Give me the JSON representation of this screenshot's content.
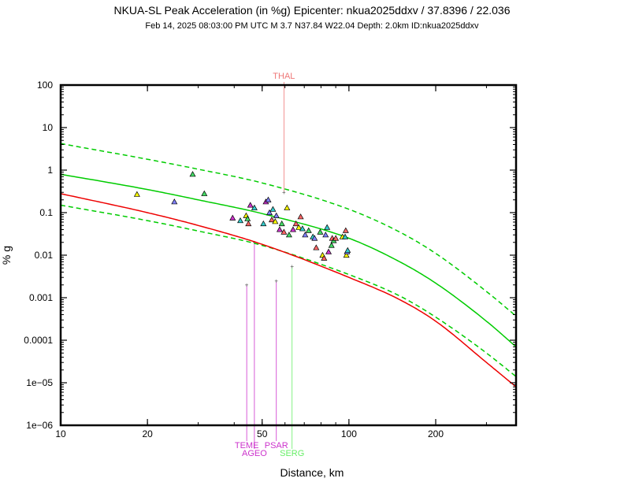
{
  "chart_data": {
    "type": "scatter",
    "title": "NKUA-SL Peak Acceleration (in %g) Epicenter: nkua2025ddxv / 37.8396 / 22.036",
    "subtitle": "Feb 14, 2025 08:03:00 PM UTC   M 3.7   N37.84 W22.04   Depth: 2.0km   ID:nkua2025ddxv",
    "xlabel": "Distance, km",
    "ylabel": "% g",
    "x_scale": "log",
    "y_scale": "log",
    "xlim": [
      10,
      380
    ],
    "ylim": [
      1e-06,
      100
    ],
    "x_ticks": [
      {
        "value": 10,
        "label": "10"
      },
      {
        "value": 20,
        "label": "20"
      },
      {
        "value": 50,
        "label": "50"
      },
      {
        "value": 100,
        "label": "100"
      },
      {
        "value": 200,
        "label": "200"
      }
    ],
    "y_ticks": [
      {
        "value": 1e-06,
        "label": "1e−06"
      },
      {
        "value": 1e-05,
        "label": "1e−05"
      },
      {
        "value": 0.0001,
        "label": "0.0001"
      },
      {
        "value": 0.001,
        "label": "0.001"
      },
      {
        "value": 0.01,
        "label": "0.01"
      },
      {
        "value": 0.1,
        "label": "0.1"
      },
      {
        "value": 1,
        "label": "1"
      },
      {
        "value": 10,
        "label": "10"
      },
      {
        "value": 100,
        "label": "100"
      }
    ],
    "grid": false,
    "curves": [
      {
        "id": "median-green",
        "color": "#00cc00",
        "dashed": false,
        "x": [
          10,
          20,
          30,
          50,
          100,
          150,
          200,
          300,
          380
        ],
        "y": [
          0.8,
          0.35,
          0.2,
          0.095,
          0.025,
          0.007,
          0.0022,
          0.00028,
          7e-05
        ]
      },
      {
        "id": "upper-green",
        "color": "#00cc00",
        "dashed": true,
        "x": [
          10,
          20,
          30,
          50,
          100,
          150,
          200,
          300,
          380
        ],
        "y": [
          4.2,
          1.8,
          1.05,
          0.5,
          0.12,
          0.035,
          0.011,
          0.0014,
          0.00037
        ]
      },
      {
        "id": "lower-green",
        "color": "#00cc00",
        "dashed": true,
        "x": [
          10,
          20,
          30,
          50,
          100,
          150,
          200,
          300,
          380
        ],
        "y": [
          0.15,
          0.065,
          0.037,
          0.017,
          0.0035,
          0.0011,
          0.00035,
          5e-05,
          1.4e-05
        ]
      },
      {
        "id": "red",
        "color": "#ee0000",
        "dashed": false,
        "x": [
          10,
          20,
          30,
          50,
          100,
          150,
          200,
          300,
          380
        ],
        "y": [
          0.28,
          0.1,
          0.05,
          0.018,
          0.003,
          0.0009,
          0.00028,
          3e-05,
          8e-06
        ]
      }
    ],
    "points": [
      {
        "x": 18.4,
        "y": 0.27,
        "color": "#ffff00"
      },
      {
        "x": 24.8,
        "y": 0.18,
        "color": "#8080ff"
      },
      {
        "x": 28.7,
        "y": 0.8,
        "color": "#44dd66"
      },
      {
        "x": 31.5,
        "y": 0.28,
        "color": "#44dd66"
      },
      {
        "x": 39.5,
        "y": 0.075,
        "color": "#cc33cc"
      },
      {
        "x": 42.0,
        "y": 0.065,
        "color": "#33cccc"
      },
      {
        "x": 44.0,
        "y": 0.085,
        "color": "#ffff00"
      },
      {
        "x": 44.5,
        "y": 0.072,
        "color": "#44dd66"
      },
      {
        "x": 44.8,
        "y": 0.055,
        "color": "#ff6666"
      },
      {
        "x": 45.5,
        "y": 0.15,
        "color": "#cc33cc"
      },
      {
        "x": 47.0,
        "y": 0.13,
        "color": "#33cccc"
      },
      {
        "x": 50.5,
        "y": 0.055,
        "color": "#33cccc"
      },
      {
        "x": 51.5,
        "y": 0.18,
        "color": "#cc33cc"
      },
      {
        "x": 52.5,
        "y": 0.2,
        "color": "#8080ff"
      },
      {
        "x": 53.0,
        "y": 0.1,
        "color": "#8080ff"
      },
      {
        "x": 54.0,
        "y": 0.068,
        "color": "#ff6666"
      },
      {
        "x": 54.5,
        "y": 0.12,
        "color": "#33cccc"
      },
      {
        "x": 55.5,
        "y": 0.062,
        "color": "#ffff00"
      },
      {
        "x": 56.0,
        "y": 0.085,
        "color": "#8080ff"
      },
      {
        "x": 57.5,
        "y": 0.04,
        "color": "#cc33cc"
      },
      {
        "x": 58.5,
        "y": 0.055,
        "color": "#44dd66"
      },
      {
        "x": 59.5,
        "y": 0.035,
        "color": "#ff6666"
      },
      {
        "x": 61.0,
        "y": 0.13,
        "color": "#ffff00"
      },
      {
        "x": 62.0,
        "y": 0.03,
        "color": "#44dd66"
      },
      {
        "x": 64.0,
        "y": 0.04,
        "color": "#cc33cc"
      },
      {
        "x": 65.5,
        "y": 0.055,
        "color": "#ff6666"
      },
      {
        "x": 67.0,
        "y": 0.045,
        "color": "#ffff00"
      },
      {
        "x": 68.0,
        "y": 0.08,
        "color": "#ff6666"
      },
      {
        "x": 69.0,
        "y": 0.042,
        "color": "#33cccc"
      },
      {
        "x": 70.5,
        "y": 0.03,
        "color": "#8080ff"
      },
      {
        "x": 72.5,
        "y": 0.038,
        "color": "#44dd66"
      },
      {
        "x": 75.0,
        "y": 0.027,
        "color": "#33cccc"
      },
      {
        "x": 76.0,
        "y": 0.025,
        "color": "#8080ff"
      },
      {
        "x": 77.0,
        "y": 0.015,
        "color": "#ff6666"
      },
      {
        "x": 79.5,
        "y": 0.035,
        "color": "#44dd66"
      },
      {
        "x": 81.0,
        "y": 0.01,
        "color": "#ffff00"
      },
      {
        "x": 82.0,
        "y": 0.0085,
        "color": "#ff6666"
      },
      {
        "x": 83.0,
        "y": 0.03,
        "color": "#8080ff"
      },
      {
        "x": 84.0,
        "y": 0.045,
        "color": "#33cccc"
      },
      {
        "x": 85.0,
        "y": 0.012,
        "color": "#cc33cc"
      },
      {
        "x": 87.0,
        "y": 0.017,
        "color": "#44dd66"
      },
      {
        "x": 87.5,
        "y": 0.025,
        "color": "#ff6666"
      },
      {
        "x": 88.5,
        "y": 0.022,
        "color": "#44dd66"
      },
      {
        "x": 90.0,
        "y": 0.025,
        "color": "#ff6666"
      },
      {
        "x": 95.0,
        "y": 0.027,
        "color": "#ffff00"
      },
      {
        "x": 97.0,
        "y": 0.027,
        "color": "#33cccc"
      },
      {
        "x": 97.5,
        "y": 0.038,
        "color": "#ff6666"
      },
      {
        "x": 98.0,
        "y": 0.01,
        "color": "#ffff00"
      },
      {
        "x": 98.5,
        "y": 0.012,
        "color": "#8080ff"
      },
      {
        "x": 99.0,
        "y": 0.013,
        "color": "#33cccc"
      }
    ],
    "flagged_stations": [
      {
        "label": "THAL",
        "x": 59.5,
        "y": 0.3,
        "color": "#ee7777",
        "label_position": "top"
      },
      {
        "label": "TEME",
        "x": 44.2,
        "y": 0.002,
        "color": "#cc33cc",
        "label_position": "bottom",
        "row": 1
      },
      {
        "label": "AGEO",
        "x": 47.0,
        "y": 0.02,
        "color": "#cc33cc",
        "label_position": "bottom",
        "row": 2
      },
      {
        "label": "PSAR",
        "x": 56.0,
        "y": 0.0025,
        "color": "#cc33cc",
        "label_position": "bottom",
        "row": 1
      },
      {
        "label": "SERG",
        "x": 63.5,
        "y": 0.0055,
        "color": "#66ee66",
        "label_position": "bottom",
        "row": 2
      }
    ]
  }
}
